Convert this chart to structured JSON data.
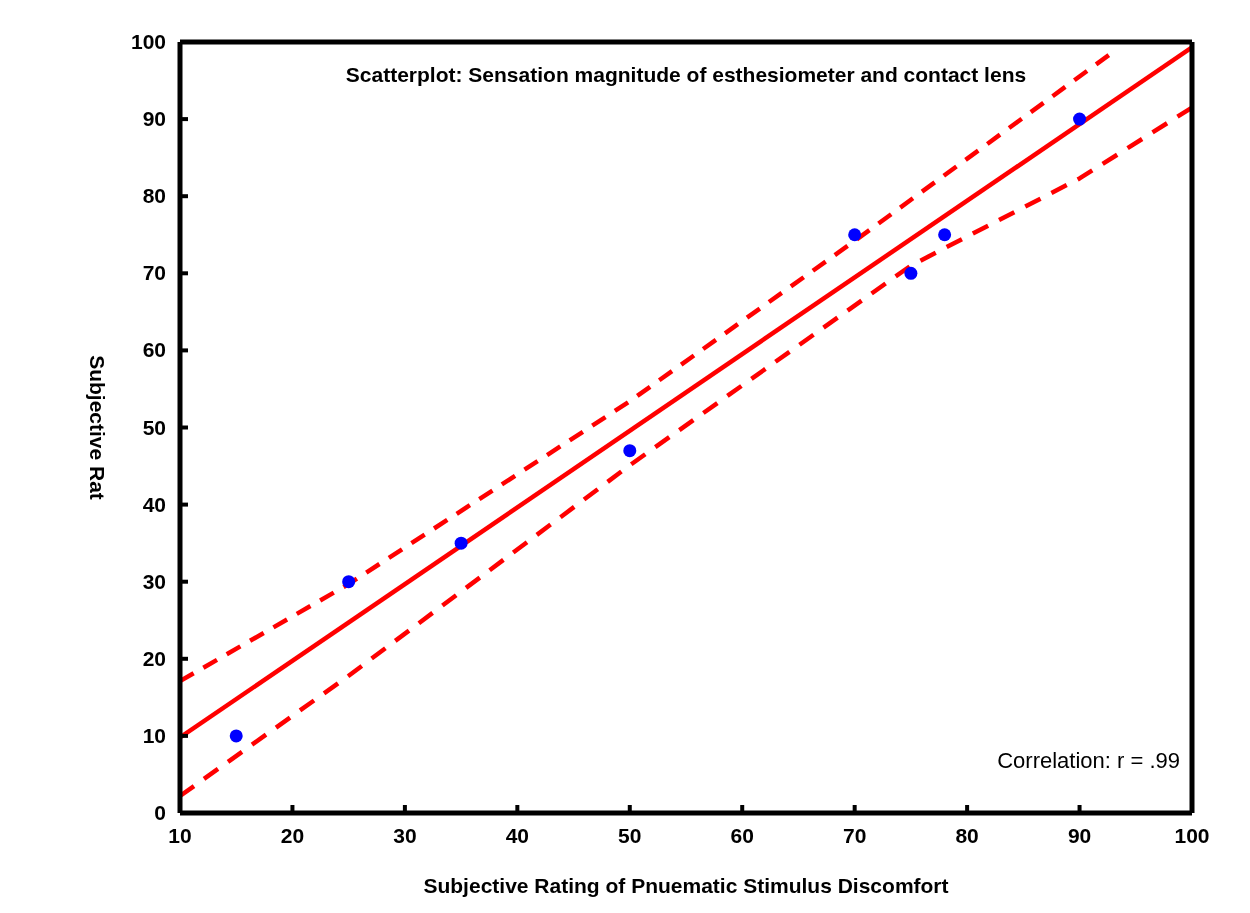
{
  "chart_data": {
    "type": "scatter",
    "title": "Scatterplot: Sensation magnitude of esthesiometer and contact lens",
    "xlabel": "Subjective Rating of Pnuematic Stimulus Discomfort",
    "ylabel": "Subjective Rat",
    "annotations": [
      "Correlation: r = .99"
    ],
    "xlim": [
      10,
      100
    ],
    "xticks": [
      10,
      20,
      30,
      40,
      50,
      60,
      70,
      80,
      90,
      100
    ],
    "ylim": [
      0,
      100
    ],
    "yticks": [
      0,
      10,
      20,
      30,
      40,
      50,
      60,
      70,
      80,
      90,
      100
    ],
    "grid": false,
    "series": [
      {
        "type": "scatter",
        "color": "#0000ff",
        "marker": "circle",
        "x": [
          15,
          25,
          35,
          50,
          70,
          75,
          78,
          90
        ],
        "values": [
          10,
          30,
          35,
          47,
          75,
          70,
          75,
          90
        ]
      },
      {
        "type": "line",
        "color": "#ff0000",
        "line_style": "solid",
        "x": [
          10,
          100
        ],
        "values": [
          9.8,
          99.3
        ]
      },
      {
        "type": "line",
        "color": "#ff0000",
        "line_style": "dashed",
        "x": [
          10,
          25,
          50,
          70,
          92.6
        ],
        "values": [
          17.1,
          29.7,
          53.4,
          74.2,
          98.3
        ]
      },
      {
        "type": "line",
        "color": "#ff0000",
        "line_style": "dashed",
        "x": [
          10,
          25,
          50,
          75,
          90,
          100
        ],
        "values": [
          2.2,
          17.8,
          45.1,
          71,
          82.3,
          91.5
        ]
      }
    ]
  }
}
